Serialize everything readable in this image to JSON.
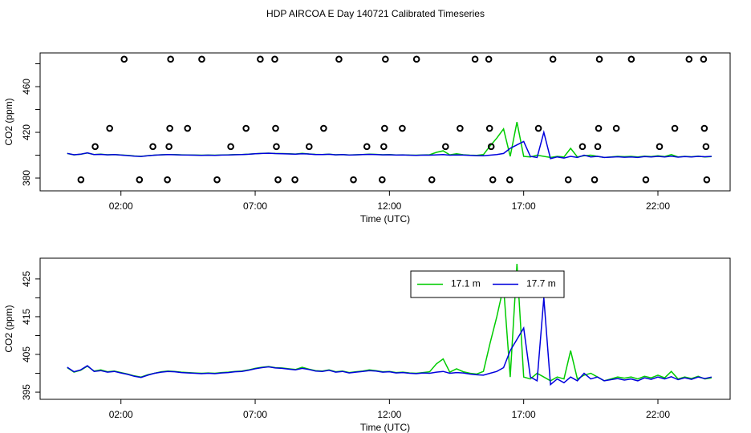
{
  "chart_data": [
    {
      "type": "scatter",
      "title": "HDP AIRCOA E  Day 140721  Calibrated Timeseries",
      "xlabel": "Time (UTC)",
      "ylabel": "CO2 (ppm)",
      "xlim": [
        -1.01,
        24.69
      ],
      "ylim": [
        368.8,
        489.5
      ],
      "xticks": [
        {
          "value": 2,
          "label": "02:00"
        },
        {
          "value": 7,
          "label": "07:00"
        },
        {
          "value": 12,
          "label": "12:00"
        },
        {
          "value": 17,
          "label": "17:00"
        },
        {
          "value": 22,
          "label": "22:00"
        }
      ],
      "yticks": [
        380,
        420,
        460
      ],
      "yminor": [
        400,
        440,
        480
      ],
      "points": {
        "color": "#000000",
        "x": [
          2.12,
          3.85,
          5.01,
          7.19,
          7.73,
          10.12,
          11.85,
          13.01,
          15.19,
          15.7,
          18.09,
          19.82,
          21.01,
          23.16,
          23.7,
          1.58,
          3.82,
          4.48,
          6.66,
          7.76,
          9.55,
          11.82,
          12.48,
          14.63,
          15.73,
          17.55,
          19.79,
          20.45,
          22.63,
          23.73,
          1.04,
          3.19,
          3.79,
          6.09,
          7.79,
          9.01,
          11.16,
          11.79,
          14.09,
          15.79,
          19.19,
          19.76,
          22.06,
          23.79,
          0.51,
          2.69,
          3.73,
          5.58,
          7.85,
          8.48,
          10.66,
          11.73,
          13.58,
          15.85,
          16.48,
          18.66,
          19.64,
          21.55,
          23.82
        ],
        "values": [
          484,
          484,
          484,
          484,
          484,
          484,
          484,
          484,
          484,
          484,
          484,
          484,
          484,
          484,
          484,
          423.5,
          423.5,
          423.5,
          423.5,
          423.5,
          423.5,
          423.5,
          423.5,
          423.5,
          423.5,
          423.5,
          423.5,
          423.5,
          423.5,
          423.5,
          407.5,
          407.5,
          407.5,
          407.5,
          407.5,
          407.5,
          407.5,
          407.5,
          407.5,
          407.5,
          407.5,
          407.5,
          407.5,
          407.5,
          378.5,
          378.5,
          378.5,
          378.5,
          378.5,
          378.5,
          378.5,
          378.5,
          378.5,
          378.5,
          378.5,
          378.5,
          378.5,
          378.5,
          378.5
        ]
      }
    },
    {
      "type": "line",
      "xlabel": "Time (UTC)",
      "ylabel": "CO2 (ppm)",
      "xlim": [
        -1.01,
        24.69
      ],
      "ylim": [
        393.1,
        430.5
      ],
      "xticks": [
        {
          "value": 2,
          "label": "02:00"
        },
        {
          "value": 7,
          "label": "07:00"
        },
        {
          "value": 12,
          "label": "12:00"
        },
        {
          "value": 17,
          "label": "17:00"
        },
        {
          "value": 22,
          "label": "22:00"
        }
      ],
      "yticks": [
        395,
        405,
        415,
        425
      ],
      "yminor": [
        400,
        410,
        420
      ],
      "legend": "top",
      "x": [
        0,
        0.25,
        0.5,
        0.75,
        1,
        1.25,
        1.5,
        1.75,
        2,
        2.25,
        2.5,
        2.75,
        3,
        3.25,
        3.5,
        3.75,
        4,
        4.25,
        4.5,
        4.75,
        5,
        5.25,
        5.5,
        5.75,
        6,
        6.25,
        6.5,
        6.75,
        7,
        7.25,
        7.5,
        7.75,
        8,
        8.25,
        8.5,
        8.75,
        9,
        9.25,
        9.5,
        9.75,
        10,
        10.25,
        10.5,
        10.75,
        11,
        11.25,
        11.5,
        11.75,
        12,
        12.25,
        12.5,
        12.75,
        13,
        13.25,
        13.5,
        13.75,
        14,
        14.25,
        14.5,
        14.75,
        15,
        15.25,
        15.5,
        15.75,
        16,
        16.25,
        16.5,
        16.75,
        17,
        17.25,
        17.5,
        17.75,
        18,
        18.25,
        18.5,
        18.75,
        19,
        19.25,
        19.5,
        19.75,
        20,
        20.25,
        20.5,
        20.75,
        21,
        21.25,
        21.5,
        21.75,
        22,
        22.25,
        22.5,
        22.75,
        23,
        23.25,
        23.5,
        23.75,
        24
      ],
      "series": [
        {
          "name": "17.1 m",
          "color": "#00cc00",
          "values": [
            401.5,
            400.3,
            400.8,
            401.9,
            400.6,
            400.9,
            400.4,
            400.6,
            400.2,
            399.8,
            399.3,
            399.0,
            399.6,
            400.0,
            400.4,
            400.6,
            400.5,
            400.3,
            400.2,
            400.1,
            400.0,
            400.1,
            400.0,
            400.2,
            400.3,
            400.5,
            400.6,
            400.9,
            401.3,
            401.6,
            401.8,
            401.5,
            401.4,
            401.2,
            401.0,
            401.6,
            401.1,
            400.7,
            400.6,
            400.9,
            400.4,
            400.6,
            400.2,
            400.4,
            400.6,
            400.9,
            400.7,
            400.4,
            400.5,
            400.2,
            400.3,
            400.1,
            400.0,
            400.2,
            400.4,
            402.5,
            403.8,
            400.3,
            401.2,
            400.4,
            400.0,
            399.8,
            400.5,
            408.0,
            415.0,
            423.0,
            399.0,
            429.0,
            399.0,
            398.5,
            400.0,
            399.0,
            398.0,
            399.0,
            398.5,
            406.0,
            398.5,
            399.5,
            400.0,
            399.0,
            398.0,
            398.5,
            399.0,
            398.7,
            399.0,
            398.5,
            399.2,
            398.8,
            399.5,
            398.8,
            400.5,
            398.5,
            399.0,
            398.6,
            399.2,
            398.5,
            398.8
          ]
        },
        {
          "name": "17.7 m",
          "color": "#0000dd",
          "values": [
            401.6,
            400.4,
            400.9,
            402.0,
            400.5,
            400.7,
            400.3,
            400.5,
            400.1,
            399.7,
            399.2,
            398.9,
            399.5,
            400.0,
            400.3,
            400.5,
            400.4,
            400.2,
            400.1,
            400.0,
            399.9,
            400.0,
            399.9,
            400.1,
            400.2,
            400.4,
            400.5,
            400.8,
            401.2,
            401.5,
            401.7,
            401.4,
            401.3,
            401.1,
            400.9,
            401.3,
            401.0,
            400.6,
            400.5,
            400.8,
            400.3,
            400.5,
            400.1,
            400.3,
            400.5,
            400.7,
            400.6,
            400.3,
            400.4,
            400.1,
            400.2,
            400.0,
            399.9,
            400.1,
            400.0,
            400.3,
            400.5,
            400.0,
            400.2,
            400.1,
            399.8,
            399.6,
            399.5,
            400.0,
            400.5,
            401.5,
            406.0,
            409.0,
            412.0,
            399.0,
            398.0,
            420.0,
            397.0,
            398.5,
            397.5,
            399.0,
            398.0,
            400.0,
            398.5,
            399.0,
            398.0,
            398.3,
            398.6,
            398.2,
            398.5,
            398.0,
            398.8,
            398.4,
            399.0,
            398.5,
            399.1,
            398.3,
            398.8,
            398.4,
            399.0,
            398.6,
            399.0
          ]
        }
      ]
    }
  ]
}
